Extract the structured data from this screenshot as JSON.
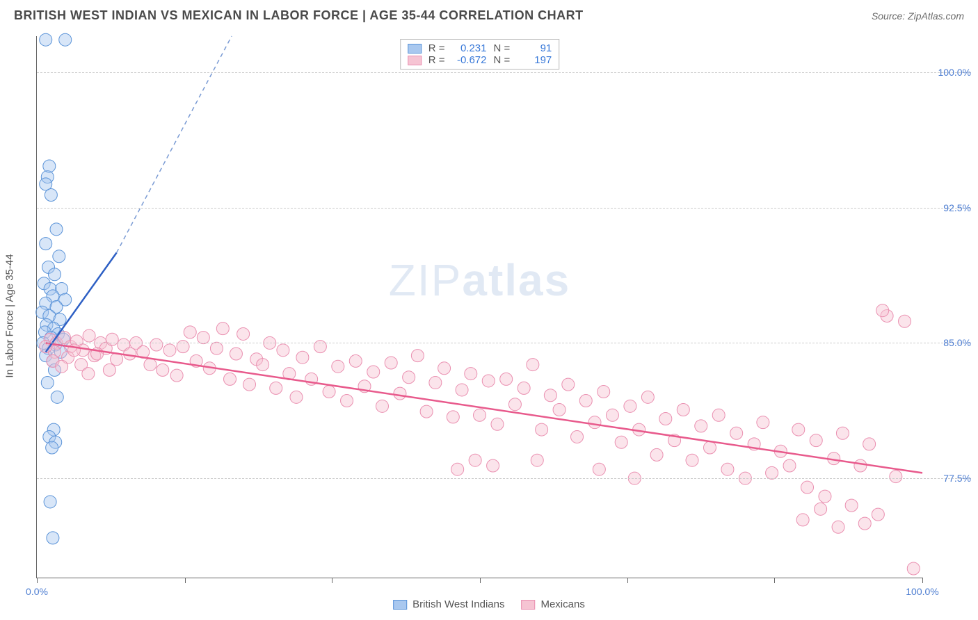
{
  "title": "BRITISH WEST INDIAN VS MEXICAN IN LABOR FORCE | AGE 35-44 CORRELATION CHART",
  "source_label": "Source: ZipAtlas.com",
  "ylabel": "In Labor Force | Age 35-44",
  "watermark_light": "ZIP",
  "watermark_bold": "atlas",
  "chart": {
    "type": "scatter-correlation",
    "background_color": "#ffffff",
    "grid_color": "#cccccc",
    "axis_color": "#666666",
    "xlim": [
      0,
      100
    ],
    "ylim": [
      72,
      102
    ],
    "x_ticks": [
      0,
      16.7,
      33.3,
      50,
      66.7,
      83.3,
      100
    ],
    "x_tick_labels": {
      "0": "0.0%",
      "100": "100.0%"
    },
    "y_ticks": [
      77.5,
      85.0,
      92.5,
      100.0
    ],
    "y_tick_labels": [
      "77.5%",
      "85.0%",
      "92.5%",
      "100.0%"
    ],
    "marker_radius": 9,
    "marker_opacity": 0.45,
    "series": [
      {
        "name": "British West Indians",
        "color_fill": "#a9c8ef",
        "color_stroke": "#5a93d8",
        "R": "0.231",
        "N": "91",
        "trend": {
          "x1": 1,
          "y1": 84.5,
          "x2": 9,
          "y2": 90.0,
          "dash_ext_x": 22,
          "dash_ext_y": 102
        },
        "points": [
          [
            1.0,
            101.8
          ],
          [
            3.2,
            101.8
          ],
          [
            1.2,
            94.2
          ],
          [
            1.4,
            94.8
          ],
          [
            1.0,
            93.8
          ],
          [
            1.6,
            93.2
          ],
          [
            2.2,
            91.3
          ],
          [
            1.0,
            90.5
          ],
          [
            2.5,
            89.8
          ],
          [
            1.3,
            89.2
          ],
          [
            2.0,
            88.8
          ],
          [
            0.8,
            88.3
          ],
          [
            1.5,
            88.0
          ],
          [
            2.8,
            88.0
          ],
          [
            1.8,
            87.6
          ],
          [
            3.2,
            87.4
          ],
          [
            1.0,
            87.2
          ],
          [
            2.2,
            87.0
          ],
          [
            0.6,
            86.7
          ],
          [
            1.4,
            86.5
          ],
          [
            2.6,
            86.3
          ],
          [
            1.1,
            86.0
          ],
          [
            1.9,
            85.8
          ],
          [
            0.9,
            85.6
          ],
          [
            2.4,
            85.5
          ],
          [
            1.6,
            85.3
          ],
          [
            3.0,
            85.2
          ],
          [
            0.7,
            85.0
          ],
          [
            2.1,
            84.9
          ],
          [
            1.3,
            84.7
          ],
          [
            2.7,
            84.5
          ],
          [
            1.0,
            84.3
          ],
          [
            1.8,
            84.0
          ],
          [
            2.0,
            83.5
          ],
          [
            1.2,
            82.8
          ],
          [
            2.3,
            82.0
          ],
          [
            1.9,
            80.2
          ],
          [
            1.4,
            79.8
          ],
          [
            2.1,
            79.5
          ],
          [
            1.7,
            79.2
          ],
          [
            1.5,
            76.2
          ],
          [
            1.8,
            74.2
          ]
        ]
      },
      {
        "name": "Mexicans",
        "color_fill": "#f6c4d3",
        "color_stroke": "#ea8fb0",
        "R": "-0.672",
        "N": "197",
        "trend": {
          "x1": 1,
          "y1": 85.0,
          "x2": 100,
          "y2": 77.8
        },
        "points": [
          [
            1.5,
            85.2
          ],
          [
            2.2,
            85.0
          ],
          [
            3.1,
            85.3
          ],
          [
            3.8,
            84.8
          ],
          [
            4.5,
            85.1
          ],
          [
            5.2,
            84.6
          ],
          [
            5.9,
            85.4
          ],
          [
            6.5,
            84.3
          ],
          [
            7.2,
            85.0
          ],
          [
            7.8,
            84.7
          ],
          [
            8.5,
            85.2
          ],
          [
            9.0,
            84.1
          ],
          [
            9.8,
            84.9
          ],
          [
            10.5,
            84.4
          ],
          [
            11.2,
            85.0
          ],
          [
            12.0,
            84.5
          ],
          [
            12.8,
            83.8
          ],
          [
            13.5,
            84.9
          ],
          [
            14.2,
            83.5
          ],
          [
            15.0,
            84.6
          ],
          [
            15.8,
            83.2
          ],
          [
            16.5,
            84.8
          ],
          [
            17.3,
            85.6
          ],
          [
            18.0,
            84.0
          ],
          [
            18.8,
            85.3
          ],
          [
            19.5,
            83.6
          ],
          [
            20.3,
            84.7
          ],
          [
            21.0,
            85.8
          ],
          [
            21.8,
            83.0
          ],
          [
            22.5,
            84.4
          ],
          [
            23.3,
            85.5
          ],
          [
            24.0,
            82.7
          ],
          [
            24.8,
            84.1
          ],
          [
            25.5,
            83.8
          ],
          [
            26.3,
            85.0
          ],
          [
            27.0,
            82.5
          ],
          [
            27.8,
            84.6
          ],
          [
            28.5,
            83.3
          ],
          [
            29.3,
            82.0
          ],
          [
            30.0,
            84.2
          ],
          [
            31.0,
            83.0
          ],
          [
            32.0,
            84.8
          ],
          [
            33.0,
            82.3
          ],
          [
            34.0,
            83.7
          ],
          [
            35.0,
            81.8
          ],
          [
            36.0,
            84.0
          ],
          [
            37.0,
            82.6
          ],
          [
            38.0,
            83.4
          ],
          [
            39.0,
            81.5
          ],
          [
            40.0,
            83.9
          ],
          [
            41.0,
            82.2
          ],
          [
            42.0,
            83.1
          ],
          [
            43.0,
            84.3
          ],
          [
            44.0,
            81.2
          ],
          [
            45.0,
            82.8
          ],
          [
            46.0,
            83.6
          ],
          [
            47.0,
            80.9
          ],
          [
            48.0,
            82.4
          ],
          [
            49.0,
            83.3
          ],
          [
            50.0,
            81.0
          ],
          [
            51.0,
            82.9
          ],
          [
            52.0,
            80.5
          ],
          [
            53.0,
            83.0
          ],
          [
            54.0,
            81.6
          ],
          [
            55.0,
            82.5
          ],
          [
            56.0,
            83.8
          ],
          [
            57.0,
            80.2
          ],
          [
            58.0,
            82.1
          ],
          [
            59.0,
            81.3
          ],
          [
            60.0,
            82.7
          ],
          [
            61.0,
            79.8
          ],
          [
            62.0,
            81.8
          ],
          [
            63.0,
            80.6
          ],
          [
            64.0,
            82.3
          ],
          [
            65.0,
            81.0
          ],
          [
            66.0,
            79.5
          ],
          [
            67.0,
            81.5
          ],
          [
            68.0,
            80.2
          ],
          [
            69.0,
            82.0
          ],
          [
            70.0,
            78.8
          ],
          [
            71.0,
            80.8
          ],
          [
            72.0,
            79.6
          ],
          [
            73.0,
            81.3
          ],
          [
            74.0,
            78.5
          ],
          [
            75.0,
            80.4
          ],
          [
            76.0,
            79.2
          ],
          [
            77.0,
            81.0
          ],
          [
            78.0,
            78.0
          ],
          [
            79.0,
            80.0
          ],
          [
            80.0,
            77.5
          ],
          [
            81.0,
            79.4
          ],
          [
            82.0,
            80.6
          ],
          [
            83.0,
            77.8
          ],
          [
            84.0,
            79.0
          ],
          [
            85.0,
            78.2
          ],
          [
            86.0,
            80.2
          ],
          [
            87.0,
            77.0
          ],
          [
            88.0,
            79.6
          ],
          [
            89.0,
            76.5
          ],
          [
            90.0,
            78.6
          ],
          [
            91.0,
            80.0
          ],
          [
            92.0,
            76.0
          ],
          [
            93.0,
            78.2
          ],
          [
            94.0,
            79.4
          ],
          [
            95.0,
            75.5
          ],
          [
            96.0,
            86.5
          ],
          [
            97.0,
            77.6
          ],
          [
            98.0,
            86.2
          ],
          [
            99.0,
            72.5
          ],
          [
            95.5,
            86.8
          ],
          [
            93.5,
            75.0
          ],
          [
            90.5,
            74.8
          ],
          [
            88.5,
            75.8
          ],
          [
            86.5,
            75.2
          ],
          [
            49.5,
            78.5
          ],
          [
            47.5,
            78.0
          ],
          [
            51.5,
            78.2
          ],
          [
            56.5,
            78.5
          ],
          [
            63.5,
            78.0
          ],
          [
            67.5,
            77.5
          ],
          [
            2.0,
            84.5
          ],
          [
            3.5,
            84.2
          ],
          [
            5.0,
            83.8
          ],
          [
            6.8,
            84.4
          ],
          [
            8.2,
            83.5
          ],
          [
            1.0,
            84.8
          ],
          [
            1.8,
            84.0
          ],
          [
            2.8,
            83.7
          ],
          [
            4.2,
            84.6
          ],
          [
            5.8,
            83.3
          ]
        ]
      }
    ]
  },
  "legend": {
    "series1_label": "British West Indians",
    "series2_label": "Mexicans"
  },
  "stats_labels": {
    "R": "R =",
    "N": "N ="
  }
}
